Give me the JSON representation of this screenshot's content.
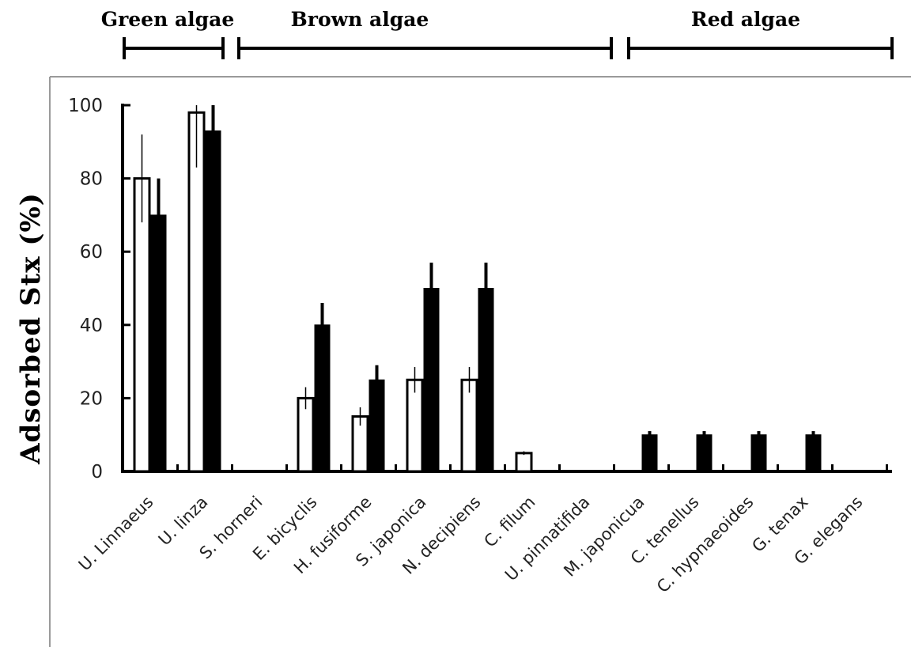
{
  "chart_data": {
    "type": "bar",
    "title": "",
    "xlabel": "",
    "ylabel": "Adsorbed Stx (%)",
    "ylim": [
      0,
      100
    ],
    "yticks": [
      "0",
      "20",
      "40",
      "60",
      "80",
      "100"
    ],
    "categories": [
      "U. Linnaeus",
      "U. linza",
      "S. horneri",
      "E. bicyclis",
      "H. fusiforme",
      "S. japonica",
      "N. decipiens",
      "C. filum",
      "U. pinnatifida",
      "M. japonicua",
      "C. tenellus",
      "C. hypnaeoides",
      "G. tenax",
      "G. elegans"
    ],
    "series": [
      {
        "style": "open",
        "color": "#ffffff",
        "values": [
          80,
          98,
          0,
          20,
          15,
          25,
          25,
          5,
          0,
          0,
          0,
          0,
          0,
          0
        ],
        "errors": [
          12,
          15,
          0,
          3,
          2.5,
          3.5,
          3.5,
          0.5,
          0,
          0,
          0,
          0,
          0,
          0
        ]
      },
      {
        "style": "filled",
        "color": "#000000",
        "values": [
          70,
          93,
          0,
          40,
          25,
          50,
          50,
          0,
          0,
          10,
          10,
          10,
          10,
          0
        ],
        "errors": [
          10,
          7,
          0,
          6,
          4,
          7,
          7,
          0,
          0,
          1,
          1,
          1,
          1,
          0
        ]
      }
    ],
    "groups": [
      {
        "label": "Green algae",
        "from": "U. Linnaeus",
        "to": "U. linza"
      },
      {
        "label": "Brown algae",
        "from": "S. horneri",
        "to": "U. pinnatifida"
      },
      {
        "label": "Red algae",
        "from": "M. japonicua",
        "to": "G. elegans"
      }
    ],
    "grid": false,
    "legend": "none"
  }
}
